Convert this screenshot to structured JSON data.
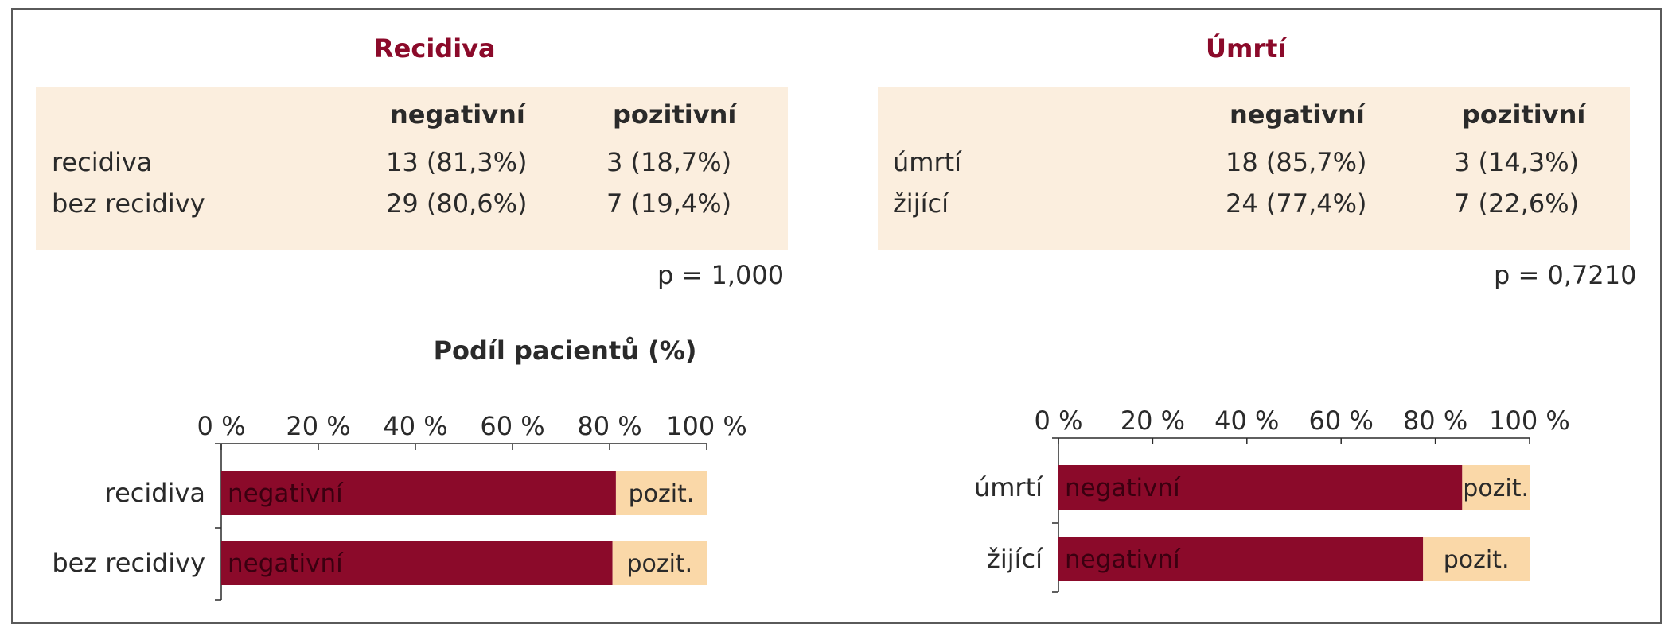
{
  "panels": {
    "left": {
      "title": "Recidiva",
      "col_headers": [
        "negativní",
        "pozitivní"
      ],
      "rows": [
        {
          "label": "recidiva",
          "neg": "13 (81,3%)",
          "pos": "3 (18,7%)"
        },
        {
          "label": "bez recidivy",
          "neg": "29 (80,6%)",
          "pos": "7 (19,4%)"
        }
      ],
      "p_value": "p = 1,000"
    },
    "right": {
      "title": "Úmrtí",
      "col_headers": [
        "negativní",
        "pozitivní"
      ],
      "rows": [
        {
          "label": "úmrtí",
          "neg": "18 (85,7%)",
          "pos": "3 (14,3%)"
        },
        {
          "label": "žijící",
          "neg": "24 (77,4%)",
          "pos": "7 (22,6%)"
        }
      ],
      "p_value": "p = 0,7210"
    }
  },
  "charts_title": "Podíl pacientů (%)",
  "colors": {
    "negative": "#8b0a2a",
    "positive": "#fad8a8",
    "table_bg": "#fbeede",
    "title": "#8b0a2a"
  },
  "chart_data": [
    {
      "type": "bar",
      "orientation": "horizontal",
      "stacked": true,
      "title": "Podíl pacientů (%)",
      "categories": [
        "recidiva",
        "bez recidivy"
      ],
      "series": [
        {
          "name": "negativní",
          "values": [
            81.3,
            80.6
          ],
          "bar_label": "negativní"
        },
        {
          "name": "pozitivní",
          "values": [
            18.7,
            19.4
          ],
          "bar_label": "pozit."
        }
      ],
      "xlim": [
        0,
        100
      ],
      "x_ticks": [
        "0 %",
        "20 %",
        "40 %",
        "60 %",
        "80 %",
        "100 %"
      ],
      "x_axis_position": "top"
    },
    {
      "type": "bar",
      "orientation": "horizontal",
      "stacked": true,
      "title": "",
      "categories": [
        "úmrtí",
        "žijící"
      ],
      "series": [
        {
          "name": "negativní",
          "values": [
            85.7,
            77.4
          ],
          "bar_label": "negativní"
        },
        {
          "name": "pozitivní",
          "values": [
            14.3,
            22.6
          ],
          "bar_label": "pozit."
        }
      ],
      "xlim": [
        0,
        100
      ],
      "x_ticks": [
        "0 %",
        "20 %",
        "40 %",
        "60 %",
        "80 %",
        "100 %"
      ],
      "x_axis_position": "top"
    }
  ]
}
